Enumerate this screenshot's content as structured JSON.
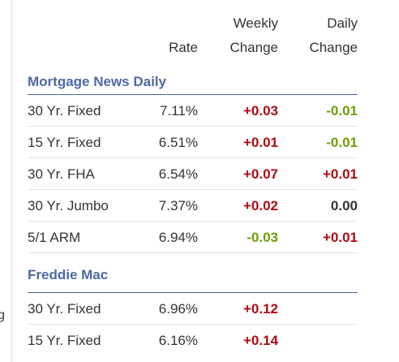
{
  "edge_glyph": "g",
  "header": {
    "rate": "Rate",
    "weekly_line1": "Weekly",
    "weekly_line2": "Change",
    "daily_line1": "Daily",
    "daily_line2": "Change"
  },
  "colors": {
    "section_title": "#4c69a3",
    "increase": "#b00a14",
    "decrease": "#6e9e0a",
    "neutral": "#333333"
  },
  "sections": [
    {
      "title": "Mortgage News Daily",
      "rows": [
        {
          "name": "30 Yr. Fixed",
          "rate": "7.11%",
          "weekly": "+0.03",
          "daily": "-0.01"
        },
        {
          "name": "15 Yr. Fixed",
          "rate": "6.51%",
          "weekly": "+0.01",
          "daily": "-0.01"
        },
        {
          "name": "30 Yr. FHA",
          "rate": "6.54%",
          "weekly": "+0.07",
          "daily": "+0.01"
        },
        {
          "name": "30 Yr. Jumbo",
          "rate": "7.37%",
          "weekly": "+0.02",
          "daily": "0.00"
        },
        {
          "name": "5/1 ARM",
          "rate": "6.94%",
          "weekly": "-0.03",
          "daily": "+0.01"
        }
      ]
    },
    {
      "title": "Freddie Mac",
      "rows": [
        {
          "name": "30 Yr. Fixed",
          "rate": "6.96%",
          "weekly": "+0.12",
          "daily": ""
        },
        {
          "name": "15 Yr. Fixed",
          "rate": "6.16%",
          "weekly": "+0.14",
          "daily": ""
        }
      ]
    }
  ]
}
